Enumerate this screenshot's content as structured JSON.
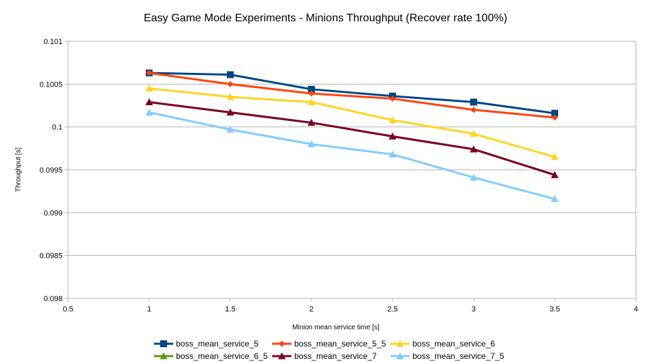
{
  "chart_data": {
    "type": "line",
    "title": "Easy Game Mode Experiments - Minions Throughput (Recover rate 100%)",
    "xlabel": "Minion mean service time [s]",
    "ylabel": "Throughput [s]",
    "xlim": [
      0.5,
      4
    ],
    "ylim": [
      0.098,
      0.101
    ],
    "x_ticks": [
      "0.5",
      "1",
      "1.5",
      "2",
      "2.5",
      "3",
      "3.5",
      "4"
    ],
    "y_ticks": [
      "0.098",
      "0.0985",
      "0.099",
      "0.0995",
      "0.1",
      "0.1005",
      "0.101"
    ],
    "grid": "horizontal",
    "legend_position": "bottom",
    "x": [
      1,
      1.5,
      2,
      2.5,
      3,
      3.5
    ],
    "series": [
      {
        "name": "boss_mean_service_5",
        "color": "#004586",
        "marker": "square",
        "values": [
          0.10063,
          0.10061,
          0.10044,
          0.10036,
          0.10029,
          0.10016
        ]
      },
      {
        "name": "boss_mean_service_5_5",
        "color": "#ff420e",
        "marker": "diamond",
        "values": [
          0.10063,
          0.1005,
          0.10039,
          0.10033,
          0.1002,
          0.10011
        ]
      },
      {
        "name": "boss_mean_service_6",
        "color": "#ffd320",
        "marker": "triangle",
        "values": [
          0.10045,
          0.10035,
          0.10029,
          0.10008,
          0.09992,
          0.09965
        ]
      },
      {
        "name": "boss_mean_service_6_5",
        "color": "#579d1c",
        "marker": "triangle",
        "values": [
          0.10029,
          0.10017,
          0.10005,
          0.09989,
          0.09974,
          0.09944
        ]
      },
      {
        "name": "boss_mean_service_7",
        "color": "#7e0021",
        "marker": "triangle",
        "values": [
          0.10029,
          0.10017,
          0.10005,
          0.09989,
          0.09974,
          0.09944
        ]
      },
      {
        "name": "boss_mean_service_7_5",
        "color": "#83caff",
        "marker": "triangle",
        "values": [
          0.10017,
          0.09997,
          0.0998,
          0.09968,
          0.09941,
          0.09916
        ]
      }
    ]
  }
}
